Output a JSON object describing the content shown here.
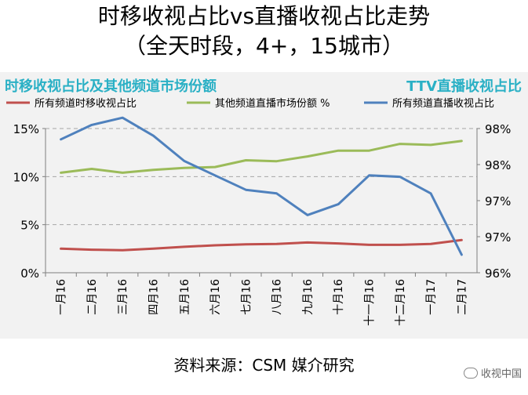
{
  "header": {
    "title": "时移收视占比vs直播收视占比走势",
    "subtitle": "（全天时段，4+，15城市）"
  },
  "panel": {
    "left_heading": "时移收视占比及其他频道市场份额",
    "right_heading": "TTV直播收视占比"
  },
  "footer": {
    "source": "资料来源：CSM 媒介研究",
    "watermark": "收视中国"
  },
  "chart_data": {
    "type": "line",
    "categories": [
      "一月16",
      "二月16",
      "三月16",
      "四月16",
      "五月16",
      "六月16",
      "七月16",
      "八月16",
      "九月16",
      "十月16",
      "十一月16",
      "十二月16",
      "一月17",
      "二月17"
    ],
    "y_left": {
      "ticks": [
        "15%",
        "10%",
        "5%",
        "0%"
      ],
      "lim": [
        0,
        15
      ]
    },
    "y_right": {
      "ticks": [
        "98%",
        "98%",
        "97%",
        "97%",
        "96%"
      ],
      "lim": [
        96,
        98
      ]
    },
    "legend_position": "top",
    "grid": "horizontal-dashed",
    "series": [
      {
        "name": "所有频道时移收视占比",
        "axis": "left",
        "color": "#c0504d",
        "values": [
          2.5,
          2.4,
          2.35,
          2.5,
          2.7,
          2.85,
          2.95,
          3.0,
          3.15,
          3.05,
          2.9,
          2.9,
          3.0,
          3.4
        ]
      },
      {
        "name": "其他频道直播市场份额 %",
        "axis": "left",
        "color": "#9bbb59",
        "values": [
          10.4,
          10.8,
          10.4,
          10.7,
          10.9,
          11.0,
          11.7,
          11.6,
          12.1,
          12.7,
          12.7,
          13.4,
          13.3,
          13.7
        ]
      },
      {
        "name": "所有频道直播收视占比",
        "axis": "right",
        "color": "#4f81bd",
        "values": [
          97.85,
          98.05,
          98.15,
          97.9,
          97.55,
          97.35,
          97.15,
          97.1,
          96.8,
          96.95,
          97.35,
          97.33,
          97.1,
          96.25
        ]
      }
    ]
  }
}
